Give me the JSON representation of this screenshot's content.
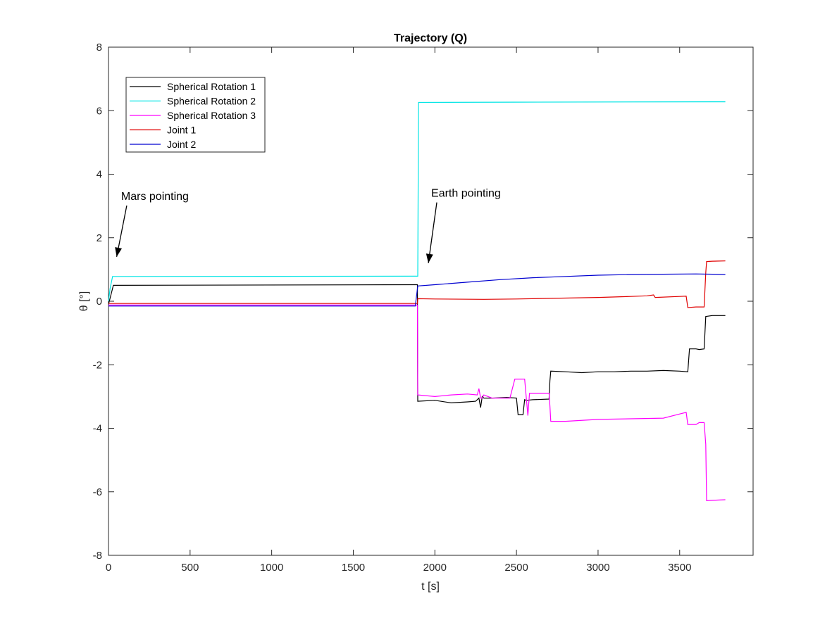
{
  "chart_data": {
    "type": "line",
    "title": "Trajectory (Q)",
    "xlabel": "t [s]",
    "ylabel": "θ [°]",
    "xlim": [
      0,
      3950
    ],
    "ylim": [
      -8,
      8
    ],
    "xticks": [
      0,
      500,
      1000,
      1500,
      2000,
      2500,
      3000,
      3500
    ],
    "yticks": [
      -8,
      -6,
      -4,
      -2,
      0,
      2,
      4,
      6,
      8
    ],
    "grid": false,
    "legend_position": "top-left",
    "series": [
      {
        "name": "Spherical Rotation 1",
        "color": "#000000",
        "x": [
          0,
          20,
          30,
          1880,
          1893,
          1895,
          2000,
          2100,
          2200,
          2250,
          2270,
          2280,
          2290,
          2300,
          2350,
          2440,
          2500,
          2510,
          2540,
          2550,
          2560,
          2600,
          2700,
          2705,
          2710,
          2800,
          2900,
          3000,
          3100,
          3200,
          3300,
          3400,
          3500,
          3550,
          3560,
          3600,
          3620,
          3650,
          3660,
          3700,
          3780
        ],
        "y": [
          -0.1,
          0.3,
          0.5,
          0.52,
          0.52,
          -3.15,
          -3.12,
          -3.2,
          -3.17,
          -3.15,
          -3.05,
          -3.35,
          -3.0,
          -3.05,
          -3.05,
          -3.03,
          -3.05,
          -3.57,
          -3.57,
          -3.1,
          -3.12,
          -3.1,
          -3.08,
          -2.5,
          -2.2,
          -2.22,
          -2.25,
          -2.22,
          -2.22,
          -2.2,
          -2.2,
          -2.18,
          -2.2,
          -2.22,
          -1.5,
          -1.5,
          -1.52,
          -1.5,
          -0.48,
          -0.45,
          -0.45
        ]
      },
      {
        "name": "Spherical Rotation 2",
        "color": "#00e5e5",
        "x": [
          0,
          10,
          25,
          1880,
          1895,
          1900,
          2500,
          3780
        ],
        "y": [
          0,
          0.4,
          0.78,
          0.79,
          0.79,
          6.26,
          6.27,
          6.28
        ]
      },
      {
        "name": "Spherical Rotation 3",
        "color": "#ff00ff",
        "x": [
          0,
          1880,
          1893,
          1895,
          2000,
          2100,
          2200,
          2260,
          2270,
          2280,
          2290,
          2300,
          2350,
          2460,
          2490,
          2500,
          2550,
          2570,
          2580,
          2600,
          2700,
          2705,
          2710,
          2800,
          3000,
          3200,
          3400,
          3500,
          3540,
          3550,
          3600,
          3620,
          3650,
          3660,
          3665,
          3700,
          3780
        ],
        "y": [
          -0.12,
          -0.12,
          -0.12,
          -2.95,
          -3.0,
          -2.95,
          -2.92,
          -2.95,
          -2.75,
          -3.05,
          -3.05,
          -2.95,
          -3.05,
          -3.05,
          -2.45,
          -2.45,
          -2.45,
          -3.6,
          -2.9,
          -2.9,
          -2.9,
          -3.3,
          -3.78,
          -3.78,
          -3.72,
          -3.7,
          -3.68,
          -3.55,
          -3.5,
          -3.88,
          -3.88,
          -3.82,
          -3.82,
          -4.5,
          -6.28,
          -6.27,
          -6.25
        ]
      },
      {
        "name": "Joint 1",
        "color": "#e00000",
        "x": [
          0,
          1880,
          1893,
          1895,
          2000,
          2300,
          2500,
          2800,
          3000,
          3200,
          3300,
          3340,
          3350,
          3500,
          3540,
          3550,
          3600,
          3650,
          3660,
          3665,
          3700,
          3780
        ],
        "y": [
          -0.07,
          -0.07,
          -0.07,
          0.08,
          0.07,
          0.06,
          0.07,
          0.1,
          0.12,
          0.15,
          0.17,
          0.2,
          0.12,
          0.15,
          0.16,
          -0.2,
          -0.18,
          -0.18,
          0.9,
          1.25,
          1.26,
          1.27
        ]
      },
      {
        "name": "Joint 2",
        "color": "#0000d0",
        "x": [
          0,
          1880,
          1895,
          2000,
          2200,
          2400,
          2600,
          2800,
          3000,
          3200,
          3400,
          3600,
          3700,
          3780
        ],
        "y": [
          -0.15,
          -0.15,
          0.48,
          0.52,
          0.6,
          0.68,
          0.74,
          0.78,
          0.82,
          0.84,
          0.85,
          0.86,
          0.85,
          0.84
        ]
      }
    ],
    "annotations": [
      {
        "text": "Mars pointing",
        "text_x": 250,
        "text_y": 2.7,
        "arrow_to_x": 50,
        "arrow_to_y": 1.4
      },
      {
        "text": "Earth pointing",
        "text_x": 2150,
        "text_y": 2.8,
        "arrow_to_x": 1960,
        "arrow_to_y": 1.2
      }
    ]
  }
}
